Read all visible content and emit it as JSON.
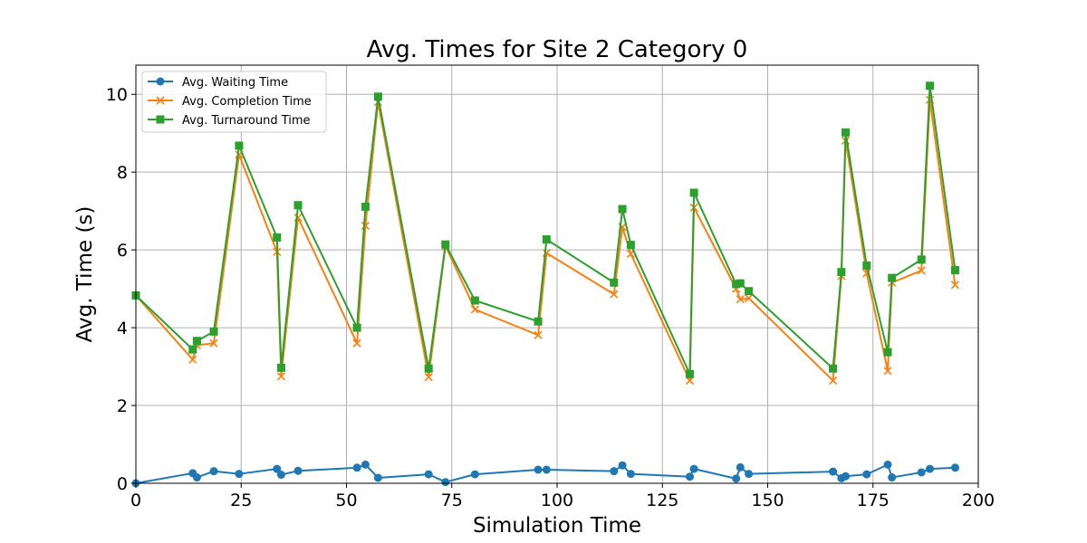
{
  "chart_data": {
    "type": "line",
    "title": "Avg. Times for Site 2 Category 0",
    "xlabel": "Simulation Time",
    "ylabel": "Avg. Time (s)",
    "xlim": [
      0,
      200
    ],
    "ylim": [
      0,
      10.75
    ],
    "xticks": [
      "0",
      "25",
      "50",
      "75",
      "100",
      "125",
      "150",
      "175",
      "200"
    ],
    "yticks": [
      "0",
      "2",
      "4",
      "6",
      "8",
      "10"
    ],
    "grid": true,
    "legend_position": "top-left",
    "x": [
      0,
      13.5,
      14.5,
      18.5,
      24.5,
      33.5,
      34.5,
      38.5,
      52.5,
      54.5,
      57.5,
      69.5,
      73.5,
      80.5,
      95.5,
      97.5,
      113.5,
      115.5,
      117.5,
      131.5,
      132.5,
      142.5,
      143.5,
      145.5,
      165.5,
      167.5,
      168.5,
      173.5,
      178.5,
      179.5,
      186.5,
      188.5,
      194.5
    ],
    "series": [
      {
        "name": "Avg. Waiting Time",
        "color": "#1f77b4",
        "marker": "circle",
        "values": [
          0.0,
          0.26,
          0.15,
          0.31,
          0.24,
          0.37,
          0.22,
          0.32,
          0.4,
          0.48,
          0.14,
          0.23,
          0.03,
          0.23,
          0.35,
          0.35,
          0.31,
          0.46,
          0.24,
          0.17,
          0.37,
          0.12,
          0.41,
          0.24,
          0.3,
          0.13,
          0.18,
          0.23,
          0.48,
          0.15,
          0.28,
          0.37,
          0.4
        ]
      },
      {
        "name": "Avg. Completion Time",
        "color": "#ff7f0e",
        "marker": "x",
        "values": [
          4.83,
          3.18,
          3.55,
          3.6,
          8.45,
          5.95,
          2.75,
          6.83,
          3.6,
          6.62,
          9.8,
          2.73,
          6.1,
          4.47,
          3.81,
          5.92,
          4.86,
          6.59,
          5.9,
          2.64,
          7.09,
          5.0,
          4.73,
          4.76,
          2.64,
          5.33,
          8.81,
          5.4,
          2.89,
          5.16,
          5.47,
          9.86,
          5.1
        ]
      },
      {
        "name": "Avg. Turnaround Time",
        "color": "#2ca02c",
        "marker": "square",
        "values": [
          4.83,
          3.44,
          3.66,
          3.9,
          8.68,
          6.32,
          2.97,
          7.15,
          4.0,
          7.11,
          9.94,
          2.95,
          6.14,
          4.7,
          4.16,
          6.27,
          5.16,
          7.05,
          6.13,
          2.81,
          7.47,
          5.12,
          5.14,
          4.94,
          2.95,
          5.43,
          9.02,
          5.6,
          3.37,
          5.28,
          5.75,
          10.22,
          5.48
        ]
      }
    ]
  }
}
